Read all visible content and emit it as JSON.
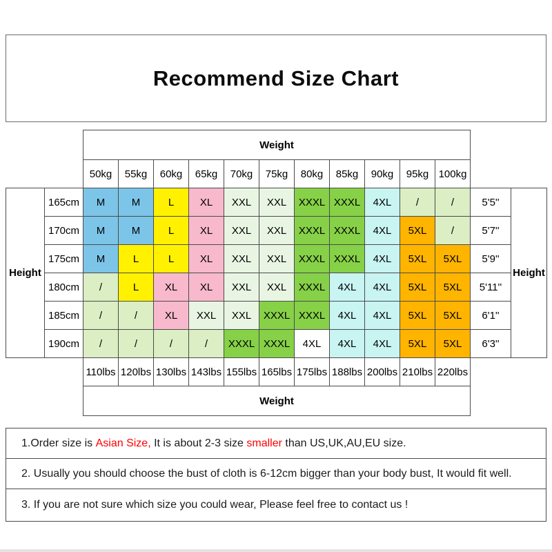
{
  "title": "Recommend Size Chart",
  "accent_red": "#FF0000",
  "table": {
    "weight_header": "Weight",
    "weight_footer": "Weight",
    "height_label_left": "Height",
    "height_label_right": "Height",
    "kg_labels": [
      "50kg",
      "55kg",
      "60kg",
      "65kg",
      "70kg",
      "75kg",
      "80kg",
      "85kg",
      "90kg",
      "95kg",
      "100kg"
    ],
    "lbs_labels": [
      "110lbs",
      "120lbs",
      "130lbs",
      "143lbs",
      "155lbs",
      "165lbs",
      "175lbs",
      "188lbs",
      "200lbs",
      "210lbs",
      "220lbs"
    ],
    "colors": {
      "blue": "#7CC5E9",
      "yellow": "#FFF100",
      "pink": "#F8B9CD",
      "pale": "#E9F5E3",
      "slash": "#DBEEC4",
      "green": "#86D147",
      "cyan": "#C8F4F2",
      "orange": "#FFB400",
      "white": "#FFFFFF"
    },
    "rows": [
      {
        "cm": "165cm",
        "ft": "5'5''",
        "cells": [
          {
            "t": "M",
            "c": "blue"
          },
          {
            "t": "M",
            "c": "blue"
          },
          {
            "t": "L",
            "c": "yellow"
          },
          {
            "t": "XL",
            "c": "pink"
          },
          {
            "t": "XXL",
            "c": "pale"
          },
          {
            "t": "XXL",
            "c": "pale"
          },
          {
            "t": "XXXL",
            "c": "green"
          },
          {
            "t": "XXXL",
            "c": "green"
          },
          {
            "t": "4XL",
            "c": "cyan"
          },
          {
            "t": "/",
            "c": "slash"
          },
          {
            "t": "/",
            "c": "slash"
          }
        ]
      },
      {
        "cm": "170cm",
        "ft": "5'7''",
        "cells": [
          {
            "t": "M",
            "c": "blue"
          },
          {
            "t": "M",
            "c": "blue"
          },
          {
            "t": "L",
            "c": "yellow"
          },
          {
            "t": "XL",
            "c": "pink"
          },
          {
            "t": "XXL",
            "c": "pale"
          },
          {
            "t": "XXL",
            "c": "pale"
          },
          {
            "t": "XXXL",
            "c": "green"
          },
          {
            "t": "XXXL",
            "c": "green"
          },
          {
            "t": "4XL",
            "c": "cyan"
          },
          {
            "t": "5XL",
            "c": "orange"
          },
          {
            "t": "/",
            "c": "slash"
          }
        ]
      },
      {
        "cm": "175cm",
        "ft": "5'9''",
        "cells": [
          {
            "t": "M",
            "c": "blue"
          },
          {
            "t": "L",
            "c": "yellow"
          },
          {
            "t": "L",
            "c": "yellow"
          },
          {
            "t": "XL",
            "c": "pink"
          },
          {
            "t": "XXL",
            "c": "pale"
          },
          {
            "t": "XXL",
            "c": "pale"
          },
          {
            "t": "XXXL",
            "c": "green"
          },
          {
            "t": "XXXL",
            "c": "green"
          },
          {
            "t": "4XL",
            "c": "cyan"
          },
          {
            "t": "5XL",
            "c": "orange"
          },
          {
            "t": "5XL",
            "c": "orange"
          }
        ]
      },
      {
        "cm": "180cm",
        "ft": "5'11''",
        "cells": [
          {
            "t": "/",
            "c": "slash"
          },
          {
            "t": "L",
            "c": "yellow"
          },
          {
            "t": "XL",
            "c": "pink"
          },
          {
            "t": "XL",
            "c": "pink"
          },
          {
            "t": "XXL",
            "c": "pale"
          },
          {
            "t": "XXL",
            "c": "pale"
          },
          {
            "t": "XXXL",
            "c": "green"
          },
          {
            "t": "4XL",
            "c": "cyan"
          },
          {
            "t": "4XL",
            "c": "cyan"
          },
          {
            "t": "5XL",
            "c": "orange"
          },
          {
            "t": "5XL",
            "c": "orange"
          }
        ]
      },
      {
        "cm": "185cm",
        "ft": "6'1''",
        "cells": [
          {
            "t": "/",
            "c": "slash"
          },
          {
            "t": "/",
            "c": "slash"
          },
          {
            "t": "XL",
            "c": "pink"
          },
          {
            "t": "XXL",
            "c": "pale"
          },
          {
            "t": "XXL",
            "c": "pale"
          },
          {
            "t": "XXXL",
            "c": "green"
          },
          {
            "t": "XXXL",
            "c": "green"
          },
          {
            "t": "4XL",
            "c": "cyan"
          },
          {
            "t": "4XL",
            "c": "cyan"
          },
          {
            "t": "5XL",
            "c": "orange"
          },
          {
            "t": "5XL",
            "c": "orange"
          }
        ]
      },
      {
        "cm": "190cm",
        "ft": "6'3''",
        "cells": [
          {
            "t": "/",
            "c": "slash"
          },
          {
            "t": "/",
            "c": "slash"
          },
          {
            "t": "/",
            "c": "slash"
          },
          {
            "t": "/",
            "c": "slash"
          },
          {
            "t": "XXXL",
            "c": "green"
          },
          {
            "t": "XXXL",
            "c": "green"
          },
          {
            "t": "4XL",
            "c": "white"
          },
          {
            "t": "4XL",
            "c": "cyan"
          },
          {
            "t": "4XL",
            "c": "cyan"
          },
          {
            "t": "5XL",
            "c": "orange"
          },
          {
            "t": "5XL",
            "c": "orange"
          }
        ]
      }
    ]
  },
  "notes": [
    {
      "segments": [
        {
          "text": "1.Order size is ",
          "red": false
        },
        {
          "text": "Asian Size,",
          "red": true
        },
        {
          "text": " It is about 2-3 size ",
          "red": false
        },
        {
          "text": "smaller",
          "red": true
        },
        {
          "text": " than US,UK,AU,EU size.",
          "red": false
        }
      ]
    },
    {
      "segments": [
        {
          "text": "2. Usually you should choose the bust of cloth is 6-12cm bigger than your body bust, It would fit well.",
          "red": false
        }
      ]
    },
    {
      "segments": [
        {
          "text": "3. If you are not sure which size you could wear, Please feel free to contact us !",
          "red": false
        }
      ]
    }
  ]
}
